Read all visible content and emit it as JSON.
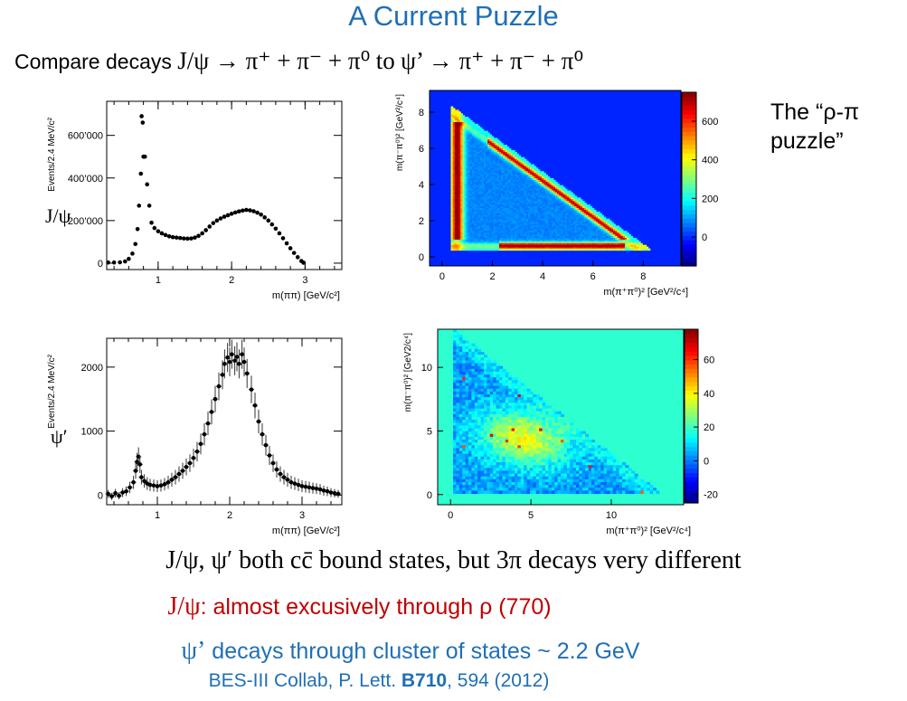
{
  "slide": {
    "title": "A Current Puzzle",
    "compare": {
      "prefix": "Compare decays",
      "decay1": "J/ψ → π⁺ + π⁻ + π⁰",
      "to": "to",
      "decay2": "ψ’ → π⁺ + π⁻ + π⁰"
    },
    "puzzle_note": "The “ρ-π puzzle”",
    "labels": {
      "jpsi": "J/ψ",
      "psiprime": "ψ′"
    },
    "line1": "J/ψ, ψ′ both cc̄ bound states, but 3π decays very different",
    "line2": {
      "prefix": "J/ψ",
      "text": ": almost excusively through ρ (770)"
    },
    "line3": {
      "prefix": "ψ’",
      "text": " decays through cluster of states ~ 2.2 GeV"
    },
    "reference": {
      "pre": "BES-III Collab, P. Lett. ",
      "bold": "B710",
      "post": ", 594 (2012)"
    }
  },
  "chart_data": [
    {
      "type": "scatter",
      "xlabel": "m(ππ) [GeV/c²]",
      "ylabel": "Events/2.4 MeV/c²",
      "xlim": [
        0.3,
        3.5
      ],
      "ylim": [
        -30000,
        760000
      ],
      "xticks": [
        1,
        2,
        3
      ],
      "yticks": [
        0,
        200000,
        400000,
        600000
      ],
      "ytick_labels": [
        "0",
        "200’000",
        "400’000",
        "600’000"
      ],
      "points": [
        [
          0.32,
          3000
        ],
        [
          0.4,
          3000
        ],
        [
          0.48,
          4000
        ],
        [
          0.55,
          8000
        ],
        [
          0.6,
          20000
        ],
        [
          0.65,
          45000
        ],
        [
          0.69,
          90000
        ],
        [
          0.72,
          160000
        ],
        [
          0.74,
          270000
        ],
        [
          0.765,
          420000
        ],
        [
          0.775,
          690000
        ],
        [
          0.79,
          660000
        ],
        [
          0.8,
          500000
        ],
        [
          0.82,
          500000
        ],
        [
          0.85,
          370000
        ],
        [
          0.88,
          270000
        ],
        [
          0.91,
          190000
        ],
        [
          0.95,
          165000
        ],
        [
          1.0,
          150000
        ],
        [
          1.05,
          140000
        ],
        [
          1.1,
          132000
        ],
        [
          1.15,
          126000
        ],
        [
          1.2,
          122000
        ],
        [
          1.25,
          120000
        ],
        [
          1.3,
          118000
        ],
        [
          1.35,
          116000
        ],
        [
          1.4,
          115000
        ],
        [
          1.45,
          116000
        ],
        [
          1.5,
          120000
        ],
        [
          1.55,
          128000
        ],
        [
          1.6,
          140000
        ],
        [
          1.65,
          155000
        ],
        [
          1.7,
          172000
        ],
        [
          1.75,
          188000
        ],
        [
          1.8,
          200000
        ],
        [
          1.85,
          210000
        ],
        [
          1.9,
          218000
        ],
        [
          1.95,
          225000
        ],
        [
          2.0,
          232000
        ],
        [
          2.05,
          238000
        ],
        [
          2.1,
          243000
        ],
        [
          2.15,
          247000
        ],
        [
          2.2,
          250000
        ],
        [
          2.25,
          248000
        ],
        [
          2.3,
          244000
        ],
        [
          2.35,
          237000
        ],
        [
          2.4,
          228000
        ],
        [
          2.45,
          215000
        ],
        [
          2.5,
          200000
        ],
        [
          2.55,
          182000
        ],
        [
          2.6,
          162000
        ],
        [
          2.65,
          140000
        ],
        [
          2.7,
          117000
        ],
        [
          2.75,
          93000
        ],
        [
          2.8,
          70000
        ],
        [
          2.85,
          48000
        ],
        [
          2.9,
          28000
        ],
        [
          2.95,
          10000
        ],
        [
          2.98,
          2000
        ]
      ]
    },
    {
      "type": "heatmap",
      "xlabel": "m(π⁺π⁰)² [GeV²/c⁴]",
      "ylabel": "m(π⁻π⁰)² [GeV²/c⁴]",
      "xlim": [
        -0.5,
        9.5
      ],
      "ylim": [
        -0.5,
        9.2
      ],
      "xticks": [
        0,
        2,
        4,
        6,
        8
      ],
      "yticks": [
        0,
        2,
        4,
        6,
        8
      ],
      "colorbar_ticks": [
        0,
        200,
        400,
        600
      ],
      "colorbar_range": [
        -150,
        750
      ]
    },
    {
      "type": "scatter",
      "xlabel": "m(ππ) [GeV/c²]",
      "ylabel": "Events/2.4 MeV/c²",
      "xlim": [
        0.3,
        3.55
      ],
      "ylim": [
        -150,
        2450
      ],
      "xticks": [
        1,
        2,
        3
      ],
      "yticks": [
        0,
        1000,
        2000
      ],
      "points": [
        [
          0.32,
          20
        ],
        [
          0.37,
          -20
        ],
        [
          0.42,
          30
        ],
        [
          0.47,
          -10
        ],
        [
          0.52,
          40
        ],
        [
          0.57,
          60
        ],
        [
          0.62,
          120
        ],
        [
          0.67,
          200
        ],
        [
          0.7,
          380
        ],
        [
          0.72,
          520
        ],
        [
          0.74,
          600
        ],
        [
          0.76,
          480
        ],
        [
          0.78,
          280
        ],
        [
          0.82,
          220
        ],
        [
          0.86,
          180
        ],
        [
          0.9,
          160
        ],
        [
          0.95,
          150
        ],
        [
          1.0,
          140
        ],
        [
          1.05,
          150
        ],
        [
          1.1,
          170
        ],
        [
          1.15,
          200
        ],
        [
          1.2,
          240
        ],
        [
          1.25,
          280
        ],
        [
          1.3,
          330
        ],
        [
          1.35,
          380
        ],
        [
          1.4,
          440
        ],
        [
          1.45,
          500
        ],
        [
          1.5,
          580
        ],
        [
          1.55,
          680
        ],
        [
          1.6,
          800
        ],
        [
          1.65,
          950
        ],
        [
          1.7,
          1120
        ],
        [
          1.75,
          1300
        ],
        [
          1.8,
          1500
        ],
        [
          1.85,
          1700
        ],
        [
          1.9,
          1880
        ],
        [
          1.93,
          2050
        ],
        [
          1.97,
          2150
        ],
        [
          2.0,
          2080
        ],
        [
          2.03,
          2200
        ],
        [
          2.07,
          2100
        ],
        [
          2.1,
          2160
        ],
        [
          2.13,
          2050
        ],
        [
          2.17,
          2200
        ],
        [
          2.2,
          2080
        ],
        [
          2.24,
          1900
        ],
        [
          2.3,
          1650
        ],
        [
          2.35,
          1400
        ],
        [
          2.4,
          1150
        ],
        [
          2.45,
          950
        ],
        [
          2.5,
          780
        ],
        [
          2.55,
          620
        ],
        [
          2.6,
          500
        ],
        [
          2.65,
          400
        ],
        [
          2.7,
          330
        ],
        [
          2.75,
          280
        ],
        [
          2.8,
          240
        ],
        [
          2.85,
          200
        ],
        [
          2.9,
          180
        ],
        [
          2.95,
          160
        ],
        [
          3.0,
          140
        ],
        [
          3.05,
          130
        ],
        [
          3.1,
          120
        ],
        [
          3.15,
          110
        ],
        [
          3.2,
          100
        ],
        [
          3.25,
          90
        ],
        [
          3.3,
          70
        ],
        [
          3.35,
          60
        ],
        [
          3.4,
          40
        ],
        [
          3.45,
          30
        ],
        [
          3.5,
          20
        ]
      ]
    },
    {
      "type": "heatmap",
      "xlabel": "m(π⁺π⁰)² [GeV²/c⁴]",
      "ylabel": "m(π⁻π⁰)² [GeV2/c⁴]",
      "xlim": [
        -0.8,
        14.5
      ],
      "ylim": [
        -0.8,
        13.0
      ],
      "xticks": [
        0,
        5,
        10
      ],
      "yticks": [
        0,
        5,
        10
      ],
      "colorbar_ticks": [
        -20,
        0,
        20,
        40,
        60
      ],
      "colorbar_range": [
        -25,
        78
      ]
    }
  ]
}
